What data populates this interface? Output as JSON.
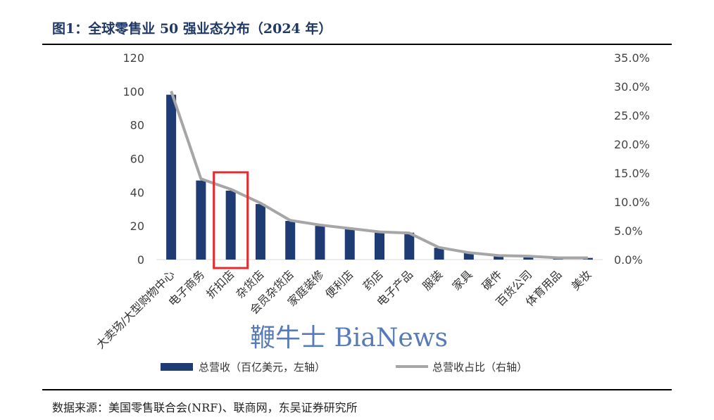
{
  "title": "图1：全球零售业 50 强业态分布（2024 年）",
  "source": "数据来源：美国零售联合会(NRF)、联商网，东吴证券研究所",
  "watermark": "鞭牛士 BiaNews",
  "colors": {
    "bar": "#1f3b73",
    "line": "#a6a6a6",
    "highlight": "#e8292d",
    "title": "#1f3864"
  },
  "chart_data": {
    "type": "bar",
    "categories": [
      "大卖场/大型购物中心",
      "电子商务",
      "折扣店",
      "杂货店",
      "会员杂货店",
      "家庭装修",
      "便利店",
      "药店",
      "电子产品",
      "服装",
      "家具",
      "硬件",
      "百货公司",
      "体育用品",
      "美妆"
    ],
    "series": [
      {
        "name": "总营收（百亿美元，左轴）",
        "type": "bar",
        "axis": "left",
        "values": [
          98,
          47,
          41,
          33,
          23,
          20,
          18,
          16,
          16,
          7,
          4,
          2,
          2,
          1,
          1
        ]
      },
      {
        "name": "总营收占比（右轴）",
        "type": "line",
        "axis": "right",
        "values": [
          29.2,
          14.0,
          12.2,
          9.8,
          6.8,
          6.0,
          5.4,
          4.8,
          4.6,
          2.1,
          1.2,
          0.7,
          0.6,
          0.3,
          0.3
        ]
      }
    ],
    "left_axis": {
      "ylim": [
        0,
        120
      ],
      "ticks": [
        "0",
        "20",
        "40",
        "60",
        "80",
        "100",
        "120"
      ]
    },
    "right_axis": {
      "ylim": [
        0,
        35
      ],
      "ticks": [
        "0.0%",
        "5.0%",
        "10.0%",
        "15.0%",
        "20.0%",
        "25.0%",
        "30.0%",
        "35.0%"
      ]
    },
    "highlighted_category": "折扣店",
    "grid": false,
    "legend_position": "bottom"
  }
}
